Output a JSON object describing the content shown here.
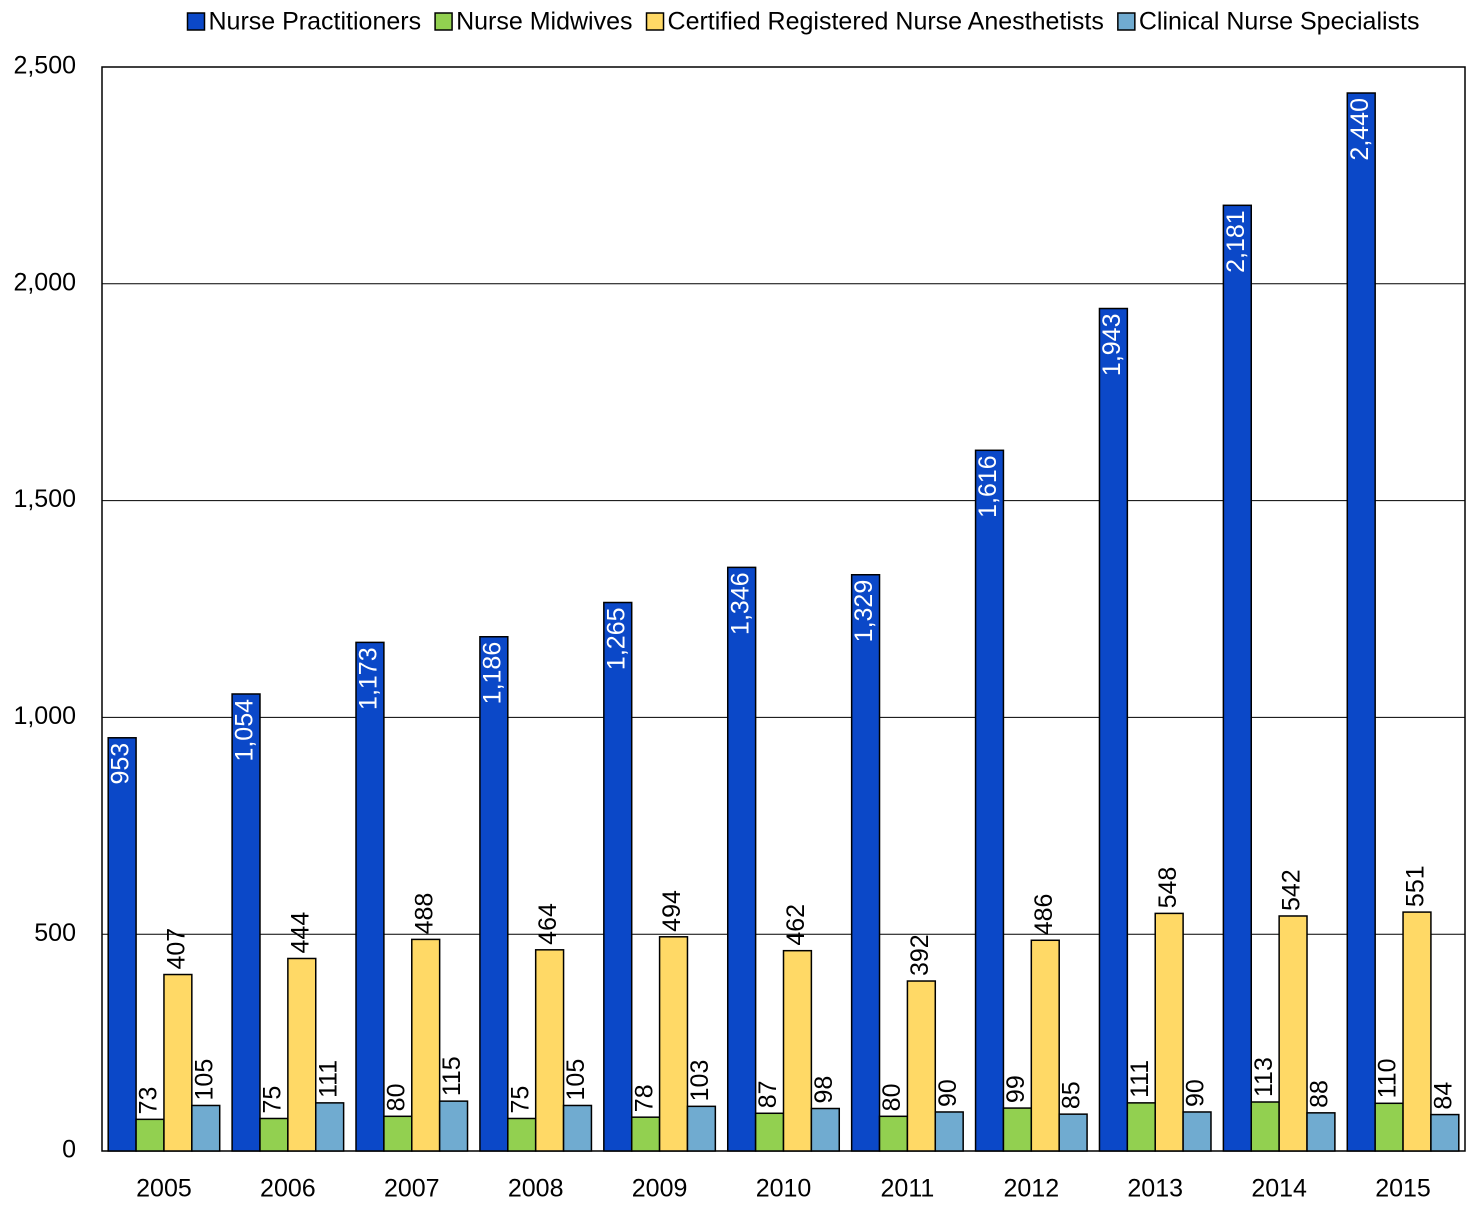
{
  "chart_data": {
    "type": "bar",
    "categories": [
      "2005",
      "2006",
      "2007",
      "2008",
      "2009",
      "2010",
      "2011",
      "2012",
      "2013",
      "2014",
      "2015"
    ],
    "series": [
      {
        "name": "Nurse Practitioners",
        "color": "#0b48c8",
        "values": [
          953,
          1054,
          1173,
          1186,
          1265,
          1346,
          1329,
          1616,
          1943,
          2181,
          2440
        ],
        "value_labels": [
          "953",
          "1,054",
          "1,173",
          "1,186",
          "1,265",
          "1,346",
          "1,329",
          "1,616",
          "1,943",
          "2,181",
          "2,440"
        ]
      },
      {
        "name": "Nurse Midwives",
        "color": "#92d050",
        "values": [
          73,
          75,
          80,
          75,
          78,
          87,
          80,
          99,
          111,
          113,
          110
        ]
      },
      {
        "name": "Certified Registered Nurse Anesthetists",
        "color": "#ffd966",
        "values": [
          407,
          444,
          488,
          464,
          494,
          462,
          392,
          486,
          548,
          542,
          551
        ]
      },
      {
        "name": "Clinical Nurse Specialists",
        "color": "#70abd0",
        "values": [
          105,
          111,
          115,
          105,
          103,
          98,
          90,
          85,
          90,
          88,
          84
        ]
      }
    ],
    "ylim": [
      0,
      2500
    ],
    "yticks": [
      0,
      500,
      {
        "value": 1000,
        "label": "1,000"
      },
      {
        "value": 1500,
        "label": "1,500"
      },
      {
        "value": 2000,
        "label": "2,000"
      },
      {
        "value": 2500,
        "label": "2,500"
      }
    ],
    "grid": true,
    "legend": "top"
  }
}
